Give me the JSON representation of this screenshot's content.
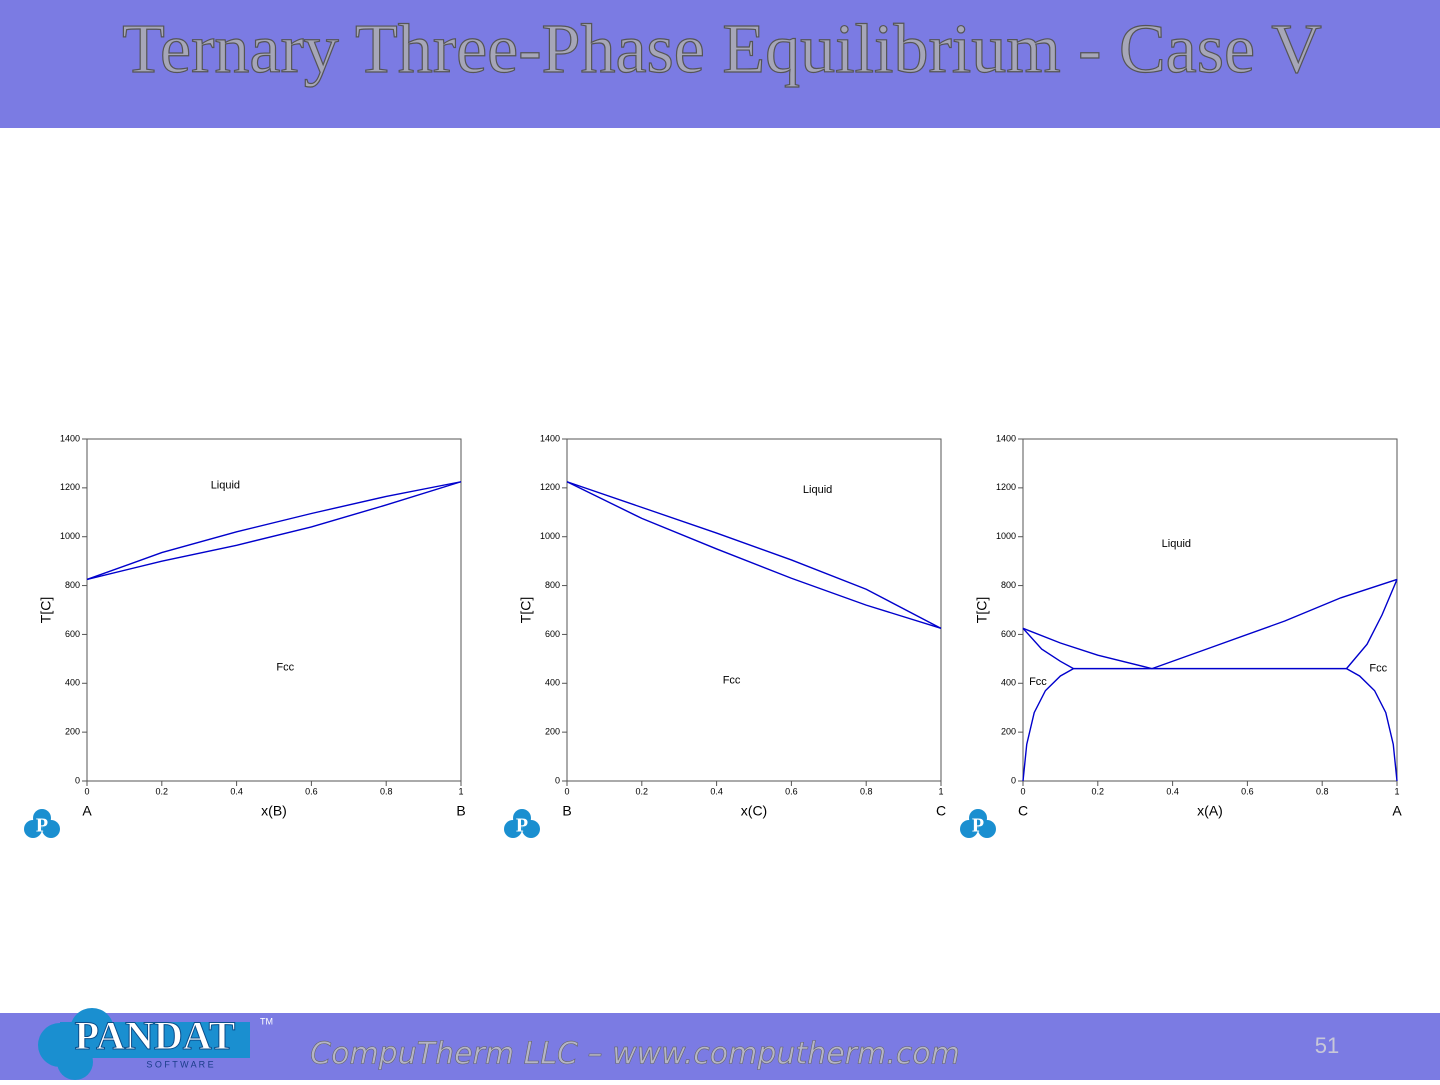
{
  "header": {
    "title": "Ternary Three-Phase Equilibrium - Case V"
  },
  "footer": {
    "text": "CompuTherm LLC – www.computherm.com",
    "page_number": "51",
    "logo_text": "PANDAT",
    "logo_sub": "S O F T W A R E",
    "logo_tm": "TM"
  },
  "icon_letter": "P",
  "chart_data": [
    {
      "type": "line",
      "ylabel": "T[C]",
      "xlabel": "x(B)",
      "x_end_labels": [
        "A",
        "B"
      ],
      "xlim": [
        0,
        1
      ],
      "ylim": [
        0,
        1400
      ],
      "xticks": [
        0,
        0.2,
        0.4,
        0.6,
        0.8,
        1
      ],
      "yticks": [
        0,
        200,
        400,
        600,
        800,
        1000,
        1200,
        1400
      ],
      "annotations": [
        "Liquid",
        "Fcc"
      ],
      "series": [
        {
          "color": "#0000cc",
          "x": [
            0,
            0.2,
            0.4,
            0.6,
            0.8,
            1
          ],
          "values": [
            825,
            935,
            1020,
            1095,
            1165,
            1225
          ]
        },
        {
          "color": "#0000cc",
          "x": [
            0,
            0.2,
            0.4,
            0.6,
            0.8,
            1
          ],
          "values": [
            825,
            900,
            965,
            1040,
            1130,
            1225
          ]
        }
      ]
    },
    {
      "type": "line",
      "ylabel": "T[C]",
      "xlabel": "x(C)",
      "x_end_labels": [
        "B",
        "C"
      ],
      "xlim": [
        0,
        1
      ],
      "ylim": [
        0,
        1400
      ],
      "xticks": [
        0,
        0.2,
        0.4,
        0.6,
        0.8,
        1
      ],
      "yticks": [
        0,
        200,
        400,
        600,
        800,
        1000,
        1200,
        1400
      ],
      "annotations": [
        "Liquid",
        "Fcc"
      ],
      "series": [
        {
          "color": "#0000cc",
          "x": [
            0,
            0.2,
            0.4,
            0.6,
            0.8,
            1
          ],
          "values": [
            1225,
            1120,
            1015,
            905,
            785,
            625
          ]
        },
        {
          "color": "#0000cc",
          "x": [
            0,
            0.2,
            0.4,
            0.6,
            0.8,
            1
          ],
          "values": [
            1225,
            1075,
            950,
            830,
            720,
            625
          ]
        }
      ]
    },
    {
      "type": "line",
      "ylabel": "T[C]",
      "xlabel": "x(A)",
      "x_end_labels": [
        "C",
        "A"
      ],
      "xlim": [
        0,
        1
      ],
      "ylim": [
        0,
        1400
      ],
      "xticks": [
        0,
        0.2,
        0.4,
        0.6,
        0.8,
        1
      ],
      "yticks": [
        0,
        200,
        400,
        600,
        800,
        1000,
        1200,
        1400
      ],
      "annotations": [
        "Liquid",
        "Fcc",
        "Fcc"
      ],
      "series": [
        {
          "color": "#0000cc",
          "x": [
            0,
            0.1,
            0.2,
            0.345
          ],
          "values": [
            625,
            565,
            515,
            460
          ]
        },
        {
          "color": "#0000cc",
          "x": [
            0.345,
            0.5,
            0.7,
            0.85,
            1
          ],
          "values": [
            460,
            545,
            655,
            750,
            825
          ]
        },
        {
          "color": "#0000cc",
          "x": [
            0.135,
            0.865
          ],
          "values": [
            460,
            460
          ]
        },
        {
          "color": "#0000cc",
          "x": [
            0,
            0.05,
            0.1,
            0.135
          ],
          "values": [
            625,
            540,
            490,
            460
          ]
        },
        {
          "color": "#0000cc",
          "x": [
            0,
            0.01,
            0.03,
            0.06,
            0.1,
            0.135
          ],
          "values": [
            0,
            150,
            280,
            370,
            430,
            460
          ]
        },
        {
          "color": "#0000cc",
          "x": [
            0.865,
            0.92,
            0.96,
            1
          ],
          "values": [
            460,
            560,
            680,
            825
          ]
        },
        {
          "color": "#0000cc",
          "x": [
            0.865,
            0.9,
            0.94,
            0.97,
            0.99,
            1
          ],
          "values": [
            460,
            430,
            370,
            280,
            150,
            0
          ]
        }
      ]
    }
  ]
}
